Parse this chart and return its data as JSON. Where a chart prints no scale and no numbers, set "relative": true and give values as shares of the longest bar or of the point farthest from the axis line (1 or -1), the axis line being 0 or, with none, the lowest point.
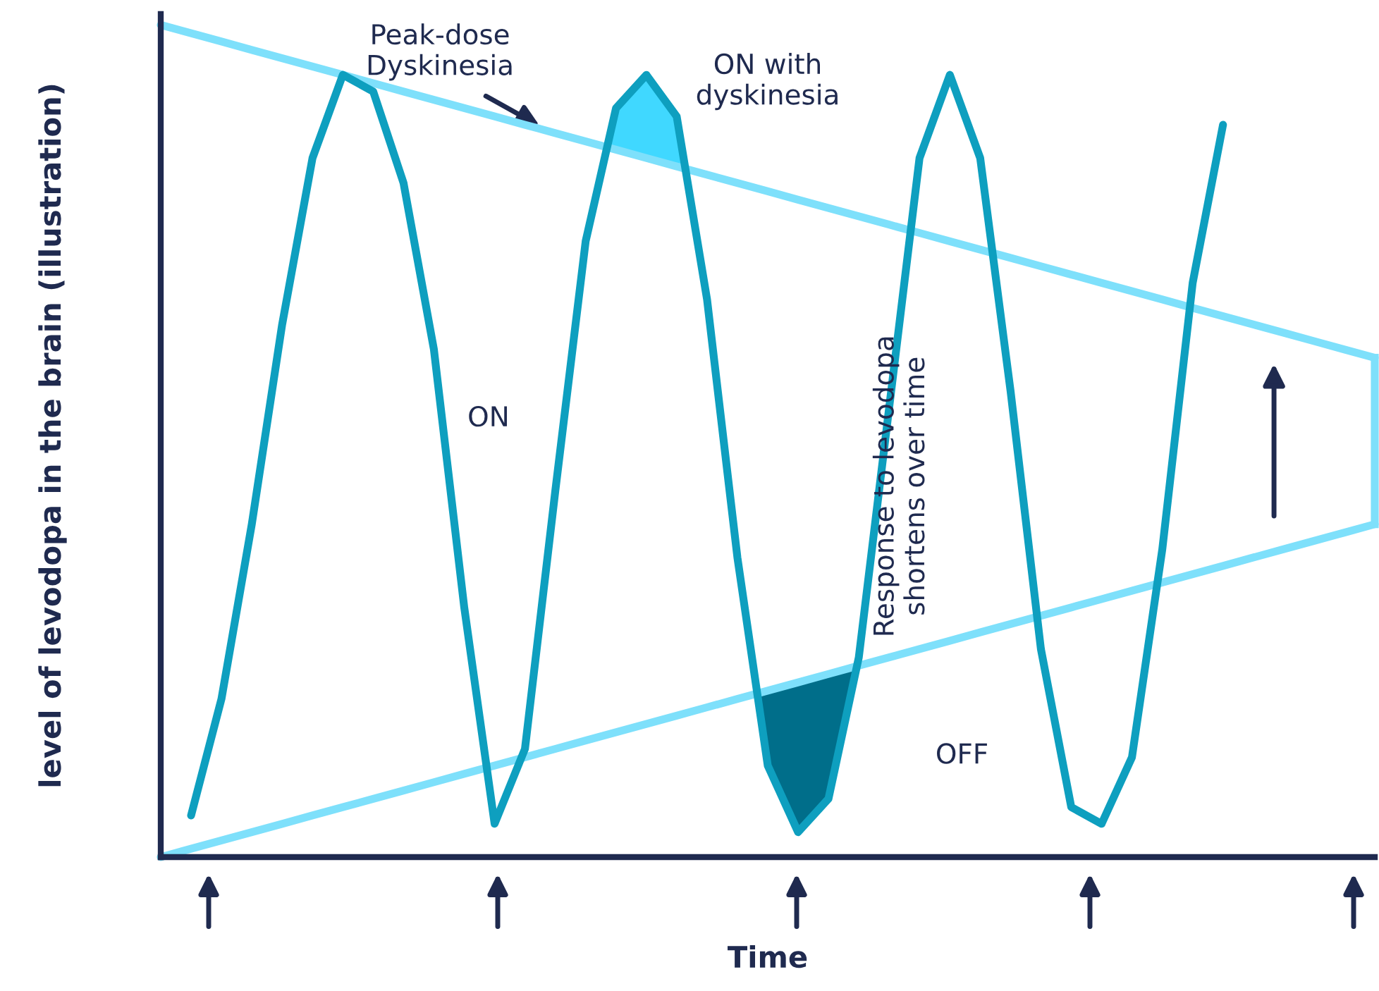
{
  "chart_data": {
    "type": "line",
    "relative": true,
    "xlabel": "Time",
    "ylabel": "level of levodopa in the brain (illustration)",
    "categories": [
      null,
      null,
      null,
      null,
      null,
      null,
      null,
      null,
      null,
      null,
      null,
      null,
      null,
      null,
      null,
      null,
      null,
      null,
      null,
      null,
      null,
      null,
      null,
      null,
      null,
      null,
      null,
      null,
      null,
      null,
      null,
      null,
      null,
      null,
      null,
      null,
      null,
      null,
      null,
      null,
      null
    ],
    "series": [
      {
        "color": "#0e9fbf",
        "values": [
          null,
          0.05,
          0.19,
          0.4,
          0.64,
          0.84,
          0.94,
          0.92,
          0.81,
          0.61,
          0.3,
          0.04,
          0.13,
          0.44,
          0.74,
          0.9,
          0.94,
          0.89,
          0.67,
          0.36,
          0.11,
          0.03,
          0.07,
          0.24,
          0.54,
          0.84,
          0.94,
          0.84,
          0.56,
          0.25,
          0.06,
          0.04,
          0.12,
          0.37,
          0.69,
          0.88,
          null,
          null,
          null,
          null,
          null
        ]
      },
      {
        "color": "#7ee0fb",
        "values": [
          1.0,
          0.99,
          0.98,
          0.97,
          0.96,
          0.95,
          0.94,
          0.93,
          0.92,
          0.91,
          0.9,
          0.89,
          0.88,
          0.87,
          0.86,
          0.85,
          0.84,
          0.83,
          0.82,
          0.81,
          0.8,
          0.79,
          0.78,
          0.77,
          0.76,
          0.75,
          0.74,
          0.73,
          0.72,
          0.71,
          0.7,
          0.69,
          0.68,
          0.67,
          0.66,
          0.65,
          0.64,
          0.63,
          0.62,
          0.61,
          0.6
        ]
      },
      {
        "color": "#7ee0fb",
        "values": [
          0.0,
          0.01,
          0.02,
          0.03,
          0.04,
          0.05,
          0.06,
          0.07,
          0.08,
          0.09,
          0.1,
          0.11,
          0.12,
          0.13,
          0.14,
          0.15,
          0.16,
          0.17,
          0.18,
          0.19,
          0.2,
          0.21,
          0.22,
          0.23,
          0.24,
          0.25,
          0.26,
          0.27,
          0.28,
          0.29,
          0.3,
          0.31,
          0.32,
          0.33,
          0.34,
          0.35,
          0.36,
          0.37,
          0.38,
          0.39,
          0.4
        ]
      }
    ],
    "annotations": [
      "Peak-dose\nDyskinesia",
      "ON with\ndyskinesia",
      "ON",
      "Response to levodopa\nshortens over time",
      "OFF"
    ]
  }
}
